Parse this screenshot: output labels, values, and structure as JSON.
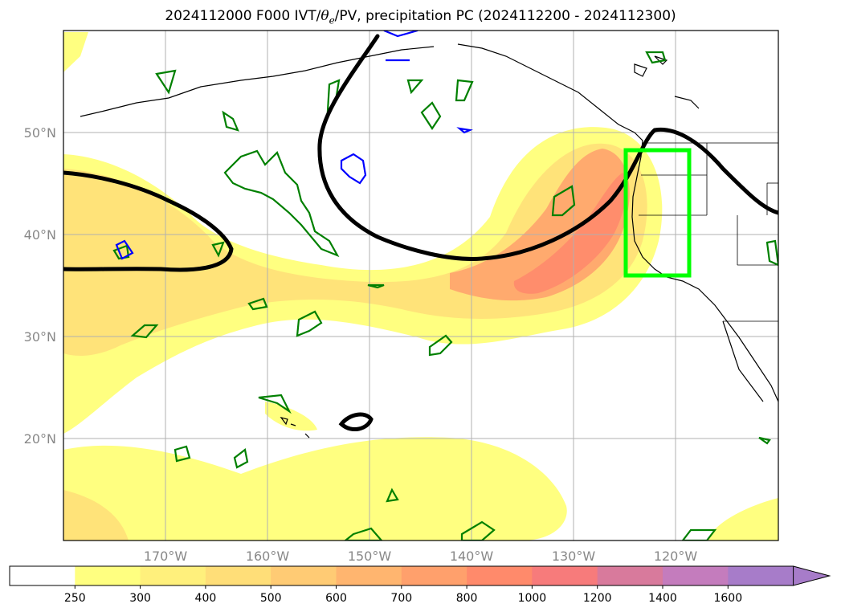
{
  "title": {
    "prefix": "2024112000 F000 IVT/",
    "theta": "θ",
    "theta_sub": "e",
    "suffix": "/PV, precipitation PC (2024112200 - 2024112300)"
  },
  "lat_labels": [
    "50°N",
    "40°N",
    "30°N",
    "20°N"
  ],
  "lon_labels": [
    "170°W",
    "160°W",
    "150°W",
    "140°W",
    "130°W",
    "120°W"
  ],
  "colorbar": {
    "ticks": [
      "250",
      "300",
      "400",
      "500",
      "600",
      "700",
      "800",
      "1000",
      "1200",
      "1400",
      "1600"
    ],
    "colors": [
      "#ffffff",
      "#ffff80",
      "#fff07c",
      "#ffde78",
      "#ffcb74",
      "#ffb56f",
      "#ffa06c",
      "#ff8a6b",
      "#f77b7b",
      "#d87a9c",
      "#c47cbd",
      "#a77cc9"
    ]
  },
  "colors": {
    "ivt_light": "#ffff80",
    "ivt_mid": "#ffde78",
    "ivt_high": "#ffa06c",
    "ivt_core": "#ff8a6b",
    "pv_contour": "#000000",
    "theta_e_green": "#008000",
    "theta_e_blue": "#0000ff",
    "box": "#00ff00"
  }
}
